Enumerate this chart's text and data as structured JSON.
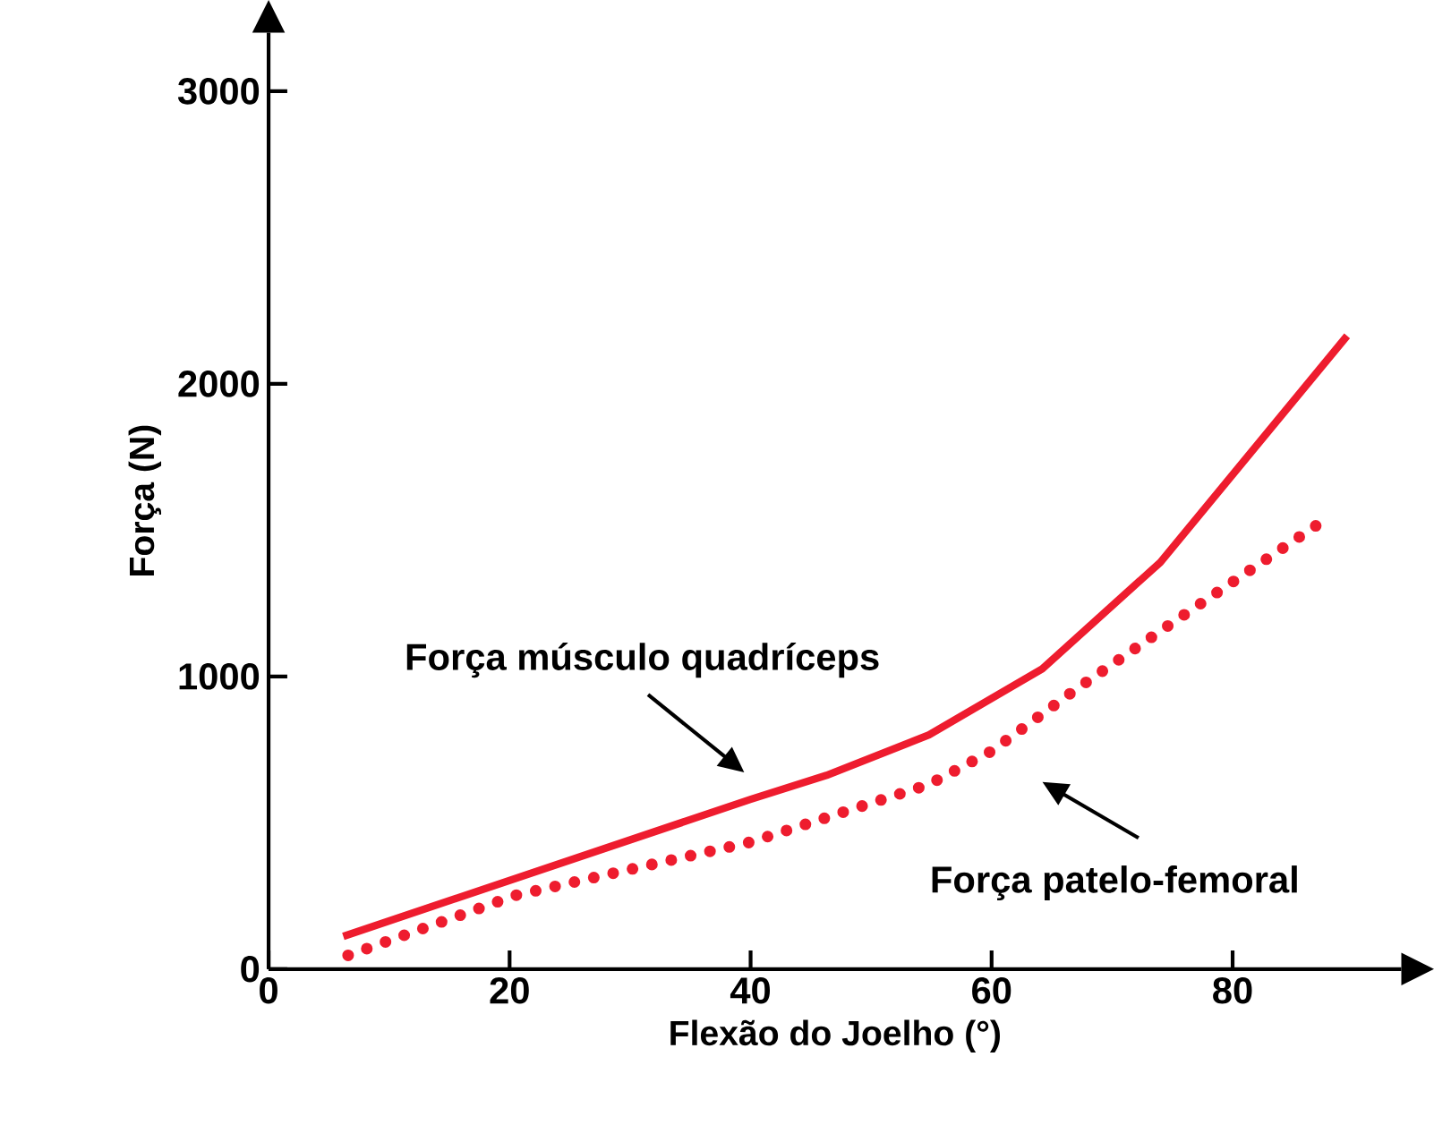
{
  "chart_data": {
    "type": "line",
    "xlabel": "Flexão do Joelho (°)",
    "ylabel": "Força (N)",
    "xlim": [
      0,
      94
    ],
    "ylim": [
      0,
      3200
    ],
    "xticks": [
      0,
      20,
      40,
      60,
      80
    ],
    "yticks": [
      0,
      1000,
      2000,
      3000
    ],
    "series": [
      {
        "color": "#ee1c2e",
        "line_style": "solid",
        "x": [
          6.2,
          40,
          46.3,
          54.8,
          64.2,
          74,
          89.5
        ],
        "values": [
          112,
          580,
          662,
          800,
          1026,
          1390,
          2164
        ]
      },
      {
        "color": "#ee1c2e",
        "line_style": "dotted",
        "x": [
          6.6,
          20.5,
          40,
          54.8,
          60,
          66.9,
          75.3,
          88.2
        ],
        "values": [
          47,
          252,
          434,
          631,
          745,
          953,
          1192,
          1551
        ]
      }
    ],
    "annotations": [
      "Força músculo quadríceps",
      "Força patelo-femoral"
    ]
  }
}
